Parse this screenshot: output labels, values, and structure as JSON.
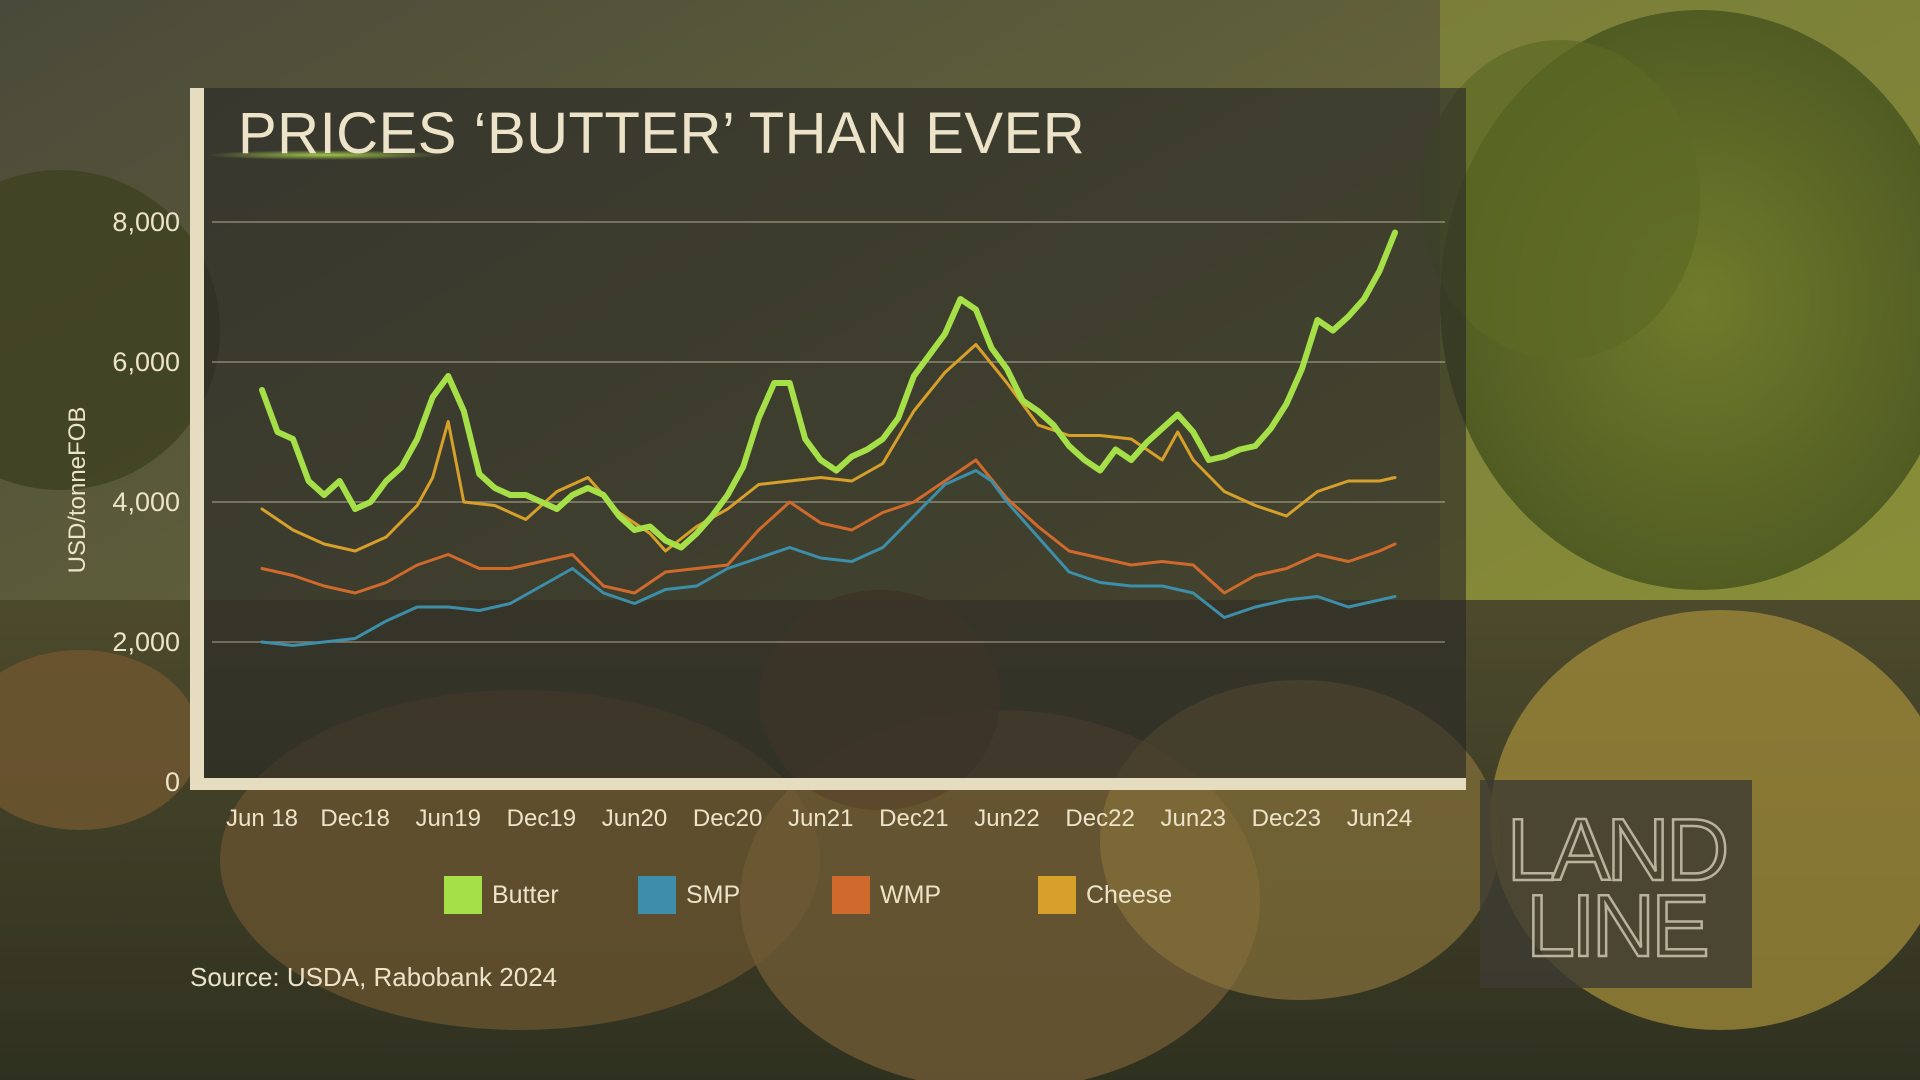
{
  "colors": {
    "butter": "#a6e048",
    "smp": "#3d8ea8",
    "wmp": "#cf6a2c",
    "cheese": "#d6a02a",
    "text": "#ece3c8",
    "frame": "#e6dcc0"
  },
  "source": "Source: USDA, Rabobank 2024",
  "logo": {
    "line1": "LAND",
    "line2": "LINE"
  },
  "chart_data": {
    "type": "line",
    "title": "PRICES ‘BUTTER’ THAN EVER",
    "xlabel": "",
    "ylabel": "USD/tonneFOB",
    "ylim": [
      0,
      8000
    ],
    "yticks": [
      "0",
      "2,000",
      "4,000",
      "6,000",
      "8,000"
    ],
    "ytick_values": [
      0,
      2000,
      4000,
      6000,
      8000
    ],
    "grid": true,
    "legend_position": "bottom",
    "x_start": "2018-06",
    "x_end": "2024-07",
    "xticks": [
      {
        "label": "Jun 18",
        "date": "2018-06"
      },
      {
        "label": "Dec18",
        "date": "2018-12"
      },
      {
        "label": "Jun19",
        "date": "2019-06"
      },
      {
        "label": "Dec19",
        "date": "2019-12"
      },
      {
        "label": "Jun20",
        "date": "2020-06"
      },
      {
        "label": "Dec20",
        "date": "2020-12"
      },
      {
        "label": "Jun21",
        "date": "2021-06"
      },
      {
        "label": "Dec21",
        "date": "2021-12"
      },
      {
        "label": "Jun22",
        "date": "2022-06"
      },
      {
        "label": "Dec22",
        "date": "2022-12"
      },
      {
        "label": "Jun23",
        "date": "2023-06"
      },
      {
        "label": "Dec23",
        "date": "2023-12"
      },
      {
        "label": "Jun24",
        "date": "2024-06"
      }
    ],
    "series": [
      {
        "name": "Butter",
        "key": "butter",
        "points": [
          [
            "2018-06",
            5600
          ],
          [
            "2018-07",
            5000
          ],
          [
            "2018-08",
            4900
          ],
          [
            "2018-09",
            4300
          ],
          [
            "2018-10",
            4100
          ],
          [
            "2018-11",
            4300
          ],
          [
            "2018-12",
            3900
          ],
          [
            "2019-01",
            4000
          ],
          [
            "2019-02",
            4300
          ],
          [
            "2019-03",
            4500
          ],
          [
            "2019-04",
            4900
          ],
          [
            "2019-05",
            5500
          ],
          [
            "2019-06",
            5800
          ],
          [
            "2019-07",
            5300
          ],
          [
            "2019-08",
            4400
          ],
          [
            "2019-09",
            4200
          ],
          [
            "2019-10",
            4100
          ],
          [
            "2019-11",
            4100
          ],
          [
            "2019-12",
            4000
          ],
          [
            "2020-01",
            3900
          ],
          [
            "2020-02",
            4100
          ],
          [
            "2020-03",
            4200
          ],
          [
            "2020-04",
            4100
          ],
          [
            "2020-05",
            3800
          ],
          [
            "2020-06",
            3600
          ],
          [
            "2020-07",
            3650
          ],
          [
            "2020-08",
            3450
          ],
          [
            "2020-09",
            3350
          ],
          [
            "2020-10",
            3550
          ],
          [
            "2020-11",
            3800
          ],
          [
            "2020-12",
            4100
          ],
          [
            "2021-01",
            4500
          ],
          [
            "2021-02",
            5200
          ],
          [
            "2021-03",
            5700
          ],
          [
            "2021-04",
            5700
          ],
          [
            "2021-05",
            4900
          ],
          [
            "2021-06",
            4600
          ],
          [
            "2021-07",
            4450
          ],
          [
            "2021-08",
            4650
          ],
          [
            "2021-09",
            4750
          ],
          [
            "2021-10",
            4900
          ],
          [
            "2021-11",
            5200
          ],
          [
            "2021-12",
            5800
          ],
          [
            "2022-01",
            6100
          ],
          [
            "2022-02",
            6400
          ],
          [
            "2022-03",
            6900
          ],
          [
            "2022-04",
            6750
          ],
          [
            "2022-05",
            6200
          ],
          [
            "2022-06",
            5900
          ],
          [
            "2022-07",
            5450
          ],
          [
            "2022-08",
            5300
          ],
          [
            "2022-09",
            5100
          ],
          [
            "2022-10",
            4800
          ],
          [
            "2022-11",
            4600
          ],
          [
            "2022-12",
            4450
          ],
          [
            "2023-01",
            4750
          ],
          [
            "2023-02",
            4600
          ],
          [
            "2023-03",
            4850
          ],
          [
            "2023-04",
            5050
          ],
          [
            "2023-05",
            5250
          ],
          [
            "2023-06",
            5000
          ],
          [
            "2023-07",
            4600
          ],
          [
            "2023-08",
            4650
          ],
          [
            "2023-09",
            4750
          ],
          [
            "2023-10",
            4800
          ],
          [
            "2023-11",
            5050
          ],
          [
            "2023-12",
            5400
          ],
          [
            "2024-01",
            5900
          ],
          [
            "2024-02",
            6600
          ],
          [
            "2024-03",
            6450
          ],
          [
            "2024-04",
            6650
          ],
          [
            "2024-05",
            6900
          ],
          [
            "2024-06",
            7300
          ],
          [
            "2024-07",
            7850
          ]
        ]
      },
      {
        "name": "SMP",
        "key": "smp",
        "points": [
          [
            "2018-06",
            2000
          ],
          [
            "2018-08",
            1950
          ],
          [
            "2018-10",
            2000
          ],
          [
            "2018-12",
            2050
          ],
          [
            "2019-02",
            2300
          ],
          [
            "2019-04",
            2500
          ],
          [
            "2019-06",
            2500
          ],
          [
            "2019-08",
            2450
          ],
          [
            "2019-10",
            2550
          ],
          [
            "2019-12",
            2800
          ],
          [
            "2020-02",
            3050
          ],
          [
            "2020-04",
            2700
          ],
          [
            "2020-06",
            2550
          ],
          [
            "2020-08",
            2750
          ],
          [
            "2020-10",
            2800
          ],
          [
            "2020-12",
            3050
          ],
          [
            "2021-02",
            3200
          ],
          [
            "2021-04",
            3350
          ],
          [
            "2021-06",
            3200
          ],
          [
            "2021-08",
            3150
          ],
          [
            "2021-10",
            3350
          ],
          [
            "2021-12",
            3800
          ],
          [
            "2022-02",
            4250
          ],
          [
            "2022-04",
            4450
          ],
          [
            "2022-05",
            4300
          ],
          [
            "2022-06",
            4000
          ],
          [
            "2022-08",
            3500
          ],
          [
            "2022-10",
            3000
          ],
          [
            "2022-12",
            2850
          ],
          [
            "2023-02",
            2800
          ],
          [
            "2023-04",
            2800
          ],
          [
            "2023-06",
            2700
          ],
          [
            "2023-08",
            2350
          ],
          [
            "2023-10",
            2500
          ],
          [
            "2023-12",
            2600
          ],
          [
            "2024-02",
            2650
          ],
          [
            "2024-04",
            2500
          ],
          [
            "2024-06",
            2600
          ],
          [
            "2024-07",
            2650
          ]
        ]
      },
      {
        "name": "WMP",
        "key": "wmp",
        "points": [
          [
            "2018-06",
            3050
          ],
          [
            "2018-08",
            2950
          ],
          [
            "2018-10",
            2800
          ],
          [
            "2018-12",
            2700
          ],
          [
            "2019-02",
            2850
          ],
          [
            "2019-04",
            3100
          ],
          [
            "2019-06",
            3250
          ],
          [
            "2019-08",
            3050
          ],
          [
            "2019-10",
            3050
          ],
          [
            "2019-12",
            3150
          ],
          [
            "2020-02",
            3250
          ],
          [
            "2020-04",
            2800
          ],
          [
            "2020-06",
            2700
          ],
          [
            "2020-08",
            3000
          ],
          [
            "2020-10",
            3050
          ],
          [
            "2020-12",
            3100
          ],
          [
            "2021-02",
            3600
          ],
          [
            "2021-04",
            4000
          ],
          [
            "2021-06",
            3700
          ],
          [
            "2021-08",
            3600
          ],
          [
            "2021-10",
            3850
          ],
          [
            "2021-12",
            4000
          ],
          [
            "2022-02",
            4300
          ],
          [
            "2022-04",
            4600
          ],
          [
            "2022-06",
            4050
          ],
          [
            "2022-08",
            3650
          ],
          [
            "2022-10",
            3300
          ],
          [
            "2022-12",
            3200
          ],
          [
            "2023-02",
            3100
          ],
          [
            "2023-04",
            3150
          ],
          [
            "2023-06",
            3100
          ],
          [
            "2023-08",
            2700
          ],
          [
            "2023-10",
            2950
          ],
          [
            "2023-12",
            3050
          ],
          [
            "2024-02",
            3250
          ],
          [
            "2024-04",
            3150
          ],
          [
            "2024-06",
            3300
          ],
          [
            "2024-07",
            3400
          ]
        ]
      },
      {
        "name": "Cheese",
        "key": "cheese",
        "points": [
          [
            "2018-06",
            3900
          ],
          [
            "2018-08",
            3600
          ],
          [
            "2018-10",
            3400
          ],
          [
            "2018-12",
            3300
          ],
          [
            "2019-02",
            3500
          ],
          [
            "2019-04",
            3950
          ],
          [
            "2019-05",
            4350
          ],
          [
            "2019-06",
            5150
          ],
          [
            "2019-07",
            4000
          ],
          [
            "2019-09",
            3950
          ],
          [
            "2019-11",
            3750
          ],
          [
            "2020-01",
            4150
          ],
          [
            "2020-03",
            4350
          ],
          [
            "2020-05",
            3850
          ],
          [
            "2020-07",
            3550
          ],
          [
            "2020-08",
            3300
          ],
          [
            "2020-10",
            3650
          ],
          [
            "2020-12",
            3900
          ],
          [
            "2021-02",
            4250
          ],
          [
            "2021-04",
            4300
          ],
          [
            "2021-06",
            4350
          ],
          [
            "2021-08",
            4300
          ],
          [
            "2021-10",
            4550
          ],
          [
            "2021-12",
            5300
          ],
          [
            "2022-02",
            5850
          ],
          [
            "2022-04",
            6250
          ],
          [
            "2022-06",
            5700
          ],
          [
            "2022-08",
            5100
          ],
          [
            "2022-10",
            4950
          ],
          [
            "2022-12",
            4950
          ],
          [
            "2023-02",
            4900
          ],
          [
            "2023-04",
            4600
          ],
          [
            "2023-05",
            5000
          ],
          [
            "2023-06",
            4600
          ],
          [
            "2023-08",
            4150
          ],
          [
            "2023-10",
            3950
          ],
          [
            "2023-12",
            3800
          ],
          [
            "2024-02",
            4150
          ],
          [
            "2024-04",
            4300
          ],
          [
            "2024-06",
            4300
          ],
          [
            "2024-07",
            4350
          ]
        ]
      }
    ]
  }
}
